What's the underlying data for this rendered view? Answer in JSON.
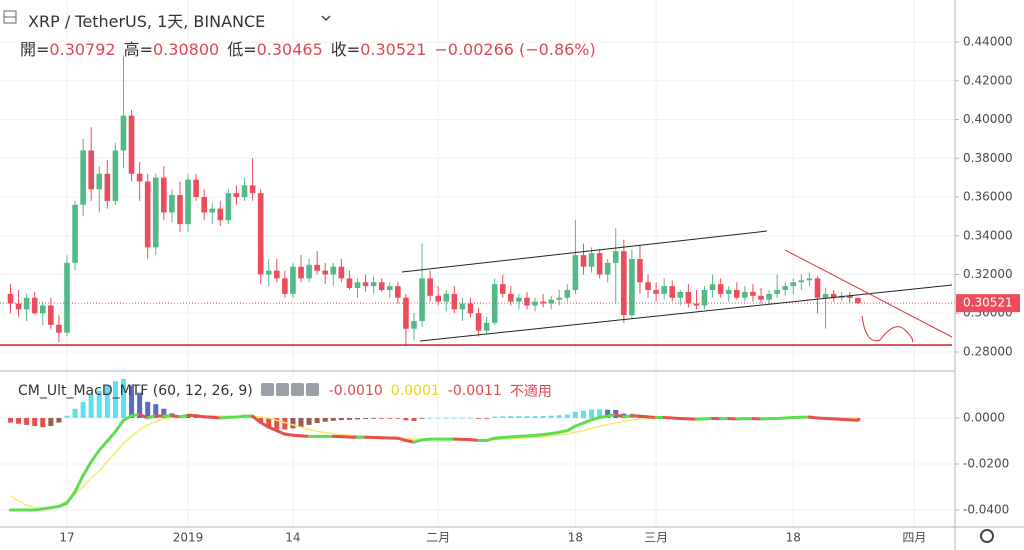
{
  "chart_data": [
    {
      "type": "candlestick",
      "title": "XRP / TetherUS, 1天, BINANCE",
      "legend_items": [
        {
          "label": "開=",
          "value": "0.30792"
        },
        {
          "label": "高=",
          "value": "0.30800"
        },
        {
          "label": "低=",
          "value": "0.30465"
        },
        {
          "label": "收=",
          "value": "0.30521"
        }
      ],
      "change": "−0.00266 (−0.86%)",
      "categories": [
        null,
        null,
        null,
        null,
        null,
        null,
        null,
        "17",
        null,
        null,
        null,
        null,
        null,
        null,
        null,
        null,
        null,
        null,
        null,
        null,
        null,
        null,
        "2019",
        null,
        null,
        null,
        null,
        null,
        null,
        null,
        null,
        null,
        null,
        null,
        null,
        "14",
        null,
        null,
        null,
        null,
        null,
        null,
        null,
        null,
        null,
        null,
        null,
        null,
        null,
        null,
        null,
        null,
        null,
        "二月",
        null,
        null,
        null,
        null,
        null,
        null,
        null,
        null,
        null,
        null,
        null,
        null,
        null,
        null,
        null,
        null,
        "18",
        null,
        null,
        null,
        null,
        null,
        null,
        null,
        null,
        null,
        "三月",
        null,
        null,
        null,
        null,
        null,
        null,
        null,
        null,
        null,
        null,
        null,
        null,
        null,
        null,
        null,
        null,
        "18",
        null,
        null,
        null,
        null,
        null,
        null,
        null,
        null,
        null,
        null,
        null,
        null,
        null,
        null,
        "四月",
        null,
        null,
        null,
        null
      ],
      "ohlc": [
        [
          0.31,
          0.315,
          0.3,
          0.305
        ],
        [
          0.305,
          0.312,
          0.298,
          0.302
        ],
        [
          0.302,
          0.31,
          0.296,
          0.308
        ],
        [
          0.308,
          0.311,
          0.299,
          0.3
        ],
        [
          0.3,
          0.306,
          0.294,
          0.304
        ],
        [
          0.304,
          0.308,
          0.292,
          0.294
        ],
        [
          0.294,
          0.299,
          0.285,
          0.29
        ],
        [
          0.29,
          0.33,
          0.288,
          0.326
        ],
        [
          0.326,
          0.358,
          0.322,
          0.356
        ],
        [
          0.356,
          0.39,
          0.35,
          0.384
        ],
        [
          0.384,
          0.396,
          0.358,
          0.364
        ],
        [
          0.364,
          0.376,
          0.352,
          0.372
        ],
        [
          0.372,
          0.379,
          0.354,
          0.358
        ],
        [
          0.358,
          0.388,
          0.356,
          0.384
        ],
        [
          0.384,
          0.433,
          0.375,
          0.402
        ],
        [
          0.402,
          0.405,
          0.368,
          0.372
        ],
        [
          0.372,
          0.378,
          0.358,
          0.368
        ],
        [
          0.368,
          0.372,
          0.328,
          0.334
        ],
        [
          0.334,
          0.372,
          0.33,
          0.37
        ],
        [
          0.37,
          0.376,
          0.348,
          0.352
        ],
        [
          0.352,
          0.364,
          0.347,
          0.361
        ],
        [
          0.361,
          0.368,
          0.342,
          0.346
        ],
        [
          0.346,
          0.372,
          0.342,
          0.369
        ],
        [
          0.369,
          0.372,
          0.358,
          0.36
        ],
        [
          0.36,
          0.364,
          0.348,
          0.352
        ],
        [
          0.352,
          0.357,
          0.346,
          0.354
        ],
        [
          0.354,
          0.358,
          0.345,
          0.348
        ],
        [
          0.348,
          0.364,
          0.346,
          0.362
        ],
        [
          0.362,
          0.366,
          0.356,
          0.36
        ],
        [
          0.36,
          0.37,
          0.358,
          0.366
        ],
        [
          0.366,
          0.38,
          0.358,
          0.362
        ],
        [
          0.362,
          0.364,
          0.315,
          0.32
        ],
        [
          0.32,
          0.328,
          0.314,
          0.322
        ],
        [
          0.322,
          0.328,
          0.316,
          0.318
        ],
        [
          0.318,
          0.322,
          0.308,
          0.31
        ],
        [
          0.31,
          0.326,
          0.308,
          0.324
        ],
        [
          0.324,
          0.33,
          0.316,
          0.318
        ],
        [
          0.318,
          0.328,
          0.316,
          0.325
        ],
        [
          0.325,
          0.332,
          0.32,
          0.322
        ],
        [
          0.322,
          0.326,
          0.315,
          0.32
        ],
        [
          0.32,
          0.326,
          0.314,
          0.324
        ],
        [
          0.324,
          0.328,
          0.316,
          0.318
        ],
        [
          0.318,
          0.322,
          0.312,
          0.313
        ],
        [
          0.313,
          0.318,
          0.308,
          0.316
        ],
        [
          0.316,
          0.32,
          0.311,
          0.314
        ],
        [
          0.314,
          0.319,
          0.31,
          0.316
        ],
        [
          0.316,
          0.318,
          0.311,
          0.312
        ],
        [
          0.312,
          0.316,
          0.308,
          0.314
        ],
        [
          0.314,
          0.316,
          0.305,
          0.308
        ],
        [
          0.308,
          0.31,
          0.283,
          0.292
        ],
        [
          0.292,
          0.3,
          0.286,
          0.296
        ],
        [
          0.296,
          0.336,
          0.293,
          0.318
        ],
        [
          0.318,
          0.322,
          0.306,
          0.309
        ],
        [
          0.309,
          0.314,
          0.304,
          0.306
        ],
        [
          0.306,
          0.312,
          0.301,
          0.31
        ],
        [
          0.31,
          0.314,
          0.3,
          0.302
        ],
        [
          0.302,
          0.308,
          0.296,
          0.305
        ],
        [
          0.305,
          0.308,
          0.298,
          0.3
        ],
        [
          0.3,
          0.303,
          0.288,
          0.291
        ],
        [
          0.291,
          0.298,
          0.289,
          0.295
        ],
        [
          0.295,
          0.318,
          0.294,
          0.315
        ],
        [
          0.315,
          0.32,
          0.308,
          0.31
        ],
        [
          0.31,
          0.314,
          0.304,
          0.306
        ],
        [
          0.306,
          0.31,
          0.302,
          0.308
        ],
        [
          0.308,
          0.311,
          0.302,
          0.304
        ],
        [
          0.304,
          0.308,
          0.301,
          0.306
        ],
        [
          0.306,
          0.31,
          0.303,
          0.305
        ],
        [
          0.305,
          0.309,
          0.302,
          0.307
        ],
        [
          0.307,
          0.312,
          0.304,
          0.308
        ],
        [
          0.308,
          0.315,
          0.306,
          0.312
        ],
        [
          0.312,
          0.348,
          0.31,
          0.33
        ],
        [
          0.33,
          0.336,
          0.32,
          0.324
        ],
        [
          0.324,
          0.334,
          0.321,
          0.331
        ],
        [
          0.331,
          0.333,
          0.318,
          0.32
        ],
        [
          0.32,
          0.328,
          0.316,
          0.326
        ],
        [
          0.326,
          0.344,
          0.305,
          0.332
        ],
        [
          0.332,
          0.338,
          0.295,
          0.299
        ],
        [
          0.299,
          0.333,
          0.297,
          0.328
        ],
        [
          0.328,
          0.335,
          0.31,
          0.316
        ],
        [
          0.316,
          0.32,
          0.308,
          0.312
        ],
        [
          0.312,
          0.316,
          0.306,
          0.31
        ],
        [
          0.31,
          0.318,
          0.307,
          0.314
        ],
        [
          0.314,
          0.317,
          0.306,
          0.308
        ],
        [
          0.308,
          0.312,
          0.304,
          0.311
        ],
        [
          0.311,
          0.315,
          0.303,
          0.305
        ],
        [
          0.305,
          0.312,
          0.302,
          0.304
        ],
        [
          0.304,
          0.314,
          0.302,
          0.312
        ],
        [
          0.312,
          0.32,
          0.308,
          0.315
        ],
        [
          0.315,
          0.318,
          0.308,
          0.31
        ],
        [
          0.31,
          0.314,
          0.306,
          0.312
        ],
        [
          0.312,
          0.316,
          0.307,
          0.308
        ],
        [
          0.308,
          0.314,
          0.306,
          0.311
        ],
        [
          0.311,
          0.315,
          0.306,
          0.309
        ],
        [
          0.309,
          0.313,
          0.305,
          0.307
        ],
        [
          0.307,
          0.312,
          0.305,
          0.31
        ],
        [
          0.31,
          0.32,
          0.308,
          0.312
        ],
        [
          0.312,
          0.316,
          0.309,
          0.314
        ],
        [
          0.314,
          0.318,
          0.31,
          0.316
        ],
        [
          0.316,
          0.32,
          0.312,
          0.317
        ],
        [
          0.317,
          0.321,
          0.314,
          0.318
        ],
        [
          0.318,
          0.319,
          0.3,
          0.308
        ],
        [
          0.308,
          0.313,
          0.292,
          0.31
        ],
        [
          0.31,
          0.312,
          0.306,
          0.308
        ],
        [
          0.308,
          0.311,
          0.306,
          0.309
        ],
        [
          0.309,
          0.311,
          0.305,
          0.3079
        ],
        [
          0.3079,
          0.308,
          0.3047,
          0.3052
        ],
        null,
        null,
        null,
        null,
        null,
        null,
        null,
        null,
        null,
        null,
        null
      ],
      "up_color": "#53b987",
      "down_color": "#eb4d5c",
      "last_price": {
        "value": 0.30521,
        "label": "0.30521"
      },
      "ylim": [
        0.2707,
        0.4617
      ],
      "yticks": [
        {
          "value": 0.28,
          "label": "0.28000"
        },
        {
          "value": 0.3,
          "label": "0.30000"
        },
        {
          "value": 0.32,
          "label": "0.32000"
        },
        {
          "value": 0.34,
          "label": "0.34000"
        },
        {
          "value": 0.36,
          "label": "0.36000"
        },
        {
          "value": 0.38,
          "label": "0.38000"
        },
        {
          "value": 0.4,
          "label": "0.40000"
        },
        {
          "value": 0.42,
          "label": "0.42000"
        },
        {
          "value": 0.44,
          "label": "0.44000"
        }
      ],
      "grid": true
    },
    {
      "type": "macd",
      "title": "CM_Ult_MacD_MTF (60, 12, 26, 9)",
      "readouts": [
        "-0.0010",
        "0.0001",
        "-0.0011"
      ],
      "note": "不適用",
      "histogram": [
        -0.002,
        -0.0025,
        -0.003,
        -0.0035,
        -0.004,
        -0.0035,
        -0.002,
        0.001,
        0.004,
        0.007,
        0.01,
        0.012,
        0.014,
        0.016,
        0.017,
        0.014,
        0.011,
        0.007,
        0.006,
        0.004,
        0.002,
        0.001,
        0.0008,
        0.0006,
        0.0004,
        0.0002,
        0.0001,
        0.0002,
        0.0003,
        0.0004,
        0.0003,
        -0.002,
        -0.004,
        -0.005,
        -0.005,
        -0.0045,
        -0.004,
        -0.003,
        -0.0022,
        -0.0016,
        -0.0012,
        -0.0009,
        -0.0008,
        -0.0006,
        -0.0004,
        -0.0003,
        -0.0003,
        -0.0003,
        -0.0003,
        -0.001,
        -0.0013,
        -0.0002,
        0.0001,
        0.0001,
        0.0001,
        0.0001,
        0.0001,
        0.0001,
        -0.0002,
        -0.0003,
        0.0006,
        0.0007,
        0.0008,
        0.0008,
        0.0008,
        0.0008,
        0.0009,
        0.001,
        0.0012,
        0.0015,
        0.0027,
        0.0032,
        0.0037,
        0.0038,
        0.0036,
        0.0035,
        0.0019,
        0.0019,
        0.0013,
        0.0007,
        0.0002,
        -0.0001,
        -0.0001,
        -0.0002,
        -0.0003,
        -0.0003,
        -0.0002,
        -0.0001,
        -0.0001,
        -0.0001,
        -0.0002,
        -0.0001,
        -0.0001,
        -0.0002,
        -0.0001,
        0,
        0.0001,
        0.0003,
        0.0004,
        0.0005,
        -0.0002,
        -0.0004,
        -0.0006,
        -0.0008,
        -0.0009,
        -0.0011,
        null,
        null,
        null,
        null,
        null,
        null,
        null,
        null,
        null,
        null,
        null
      ],
      "macd": [
        -0.04,
        -0.04,
        -0.04,
        -0.04,
        -0.0395,
        -0.039,
        -0.0385,
        -0.037,
        -0.032,
        -0.025,
        -0.019,
        -0.014,
        -0.01,
        -0.006,
        -0.001,
        0.001,
        0.0015,
        0,
        0.001,
        0.0008,
        0.001,
        0.0005,
        0.0012,
        0.001,
        0.0005,
        0.0003,
        0,
        0.0003,
        0.0004,
        0.0008,
        0.0008,
        -0.002,
        -0.004,
        -0.0055,
        -0.007,
        -0.0075,
        -0.0078,
        -0.008,
        -0.008,
        -0.008,
        -0.008,
        -0.0081,
        -0.0083,
        -0.0084,
        -0.0084,
        -0.0085,
        -0.0086,
        -0.0087,
        -0.0088,
        -0.0098,
        -0.0105,
        -0.0095,
        -0.0092,
        -0.0092,
        -0.0092,
        -0.0092,
        -0.0093,
        -0.0094,
        -0.0098,
        -0.0098,
        -0.0088,
        -0.0085,
        -0.0082,
        -0.008,
        -0.0078,
        -0.0076,
        -0.0072,
        -0.0068,
        -0.0062,
        -0.0055,
        -0.0035,
        -0.0022,
        -0.0008,
        0.0002,
        0.0008,
        0.0015,
        0.0005,
        0.001,
        0.0008,
        0.0005,
        0.0002,
        0.0002,
        0,
        -0.0002,
        -0.0004,
        -0.0005,
        -0.0004,
        -0.0002,
        -0.0003,
        -0.0003,
        -0.0004,
        -0.0003,
        -0.0003,
        -0.0004,
        -0.0003,
        -0.0002,
        0,
        0.0002,
        0.0003,
        0.0004,
        0,
        -0.0002,
        -0.0004,
        -0.0006,
        -0.0008,
        -0.001,
        null,
        null,
        null,
        null,
        null,
        null,
        null,
        null,
        null,
        null,
        null
      ],
      "signal": [
        -0.034,
        -0.036,
        -0.038,
        -0.039,
        -0.04,
        -0.0395,
        -0.038,
        -0.036,
        -0.033,
        -0.03,
        -0.026,
        -0.023,
        -0.019,
        -0.015,
        -0.011,
        -0.008,
        -0.005,
        -0.003,
        -0.0015,
        -0.0005,
        0.0003,
        0.0008,
        0.001,
        0.001,
        0.001,
        0.0009,
        0.0008,
        0.0007,
        0.0007,
        0.0007,
        0.0007,
        0.0005,
        0,
        -0.001,
        -0.002,
        -0.003,
        -0.004,
        -0.005,
        -0.0058,
        -0.0064,
        -0.0068,
        -0.0072,
        -0.0075,
        -0.0078,
        -0.008,
        -0.0082,
        -0.0083,
        -0.0084,
        -0.0085,
        -0.0088,
        -0.0092,
        -0.0093,
        -0.0093,
        -0.0093,
        -0.0093,
        -0.0093,
        -0.0093,
        -0.0094,
        -0.0095,
        -0.0096,
        -0.0094,
        -0.0092,
        -0.009,
        -0.0088,
        -0.0086,
        -0.0084,
        -0.0081,
        -0.0078,
        -0.0074,
        -0.007,
        -0.0062,
        -0.0054,
        -0.0045,
        -0.0036,
        -0.0028,
        -0.002,
        -0.0014,
        -0.0009,
        -0.0005,
        -0.0002,
        0,
        0.0001,
        0.0001,
        0,
        -0.0001,
        -0.0002,
        -0.0002,
        -0.0002,
        -0.0002,
        -0.0002,
        -0.0002,
        -0.0002,
        -0.0002,
        -0.0002,
        -0.0002,
        -0.0001,
        0,
        0.0001,
        0.0002,
        0.0002,
        0.0002,
        0.0002,
        0.0001,
        0.0001,
        0.0001,
        0.0001,
        null,
        null,
        null,
        null,
        null,
        null,
        null,
        null,
        null,
        null,
        null
      ],
      "rise_color": "#5fdc4f",
      "fall_color": "#e5504a",
      "signal_color": "#f2ec6e",
      "ylim": [
        -0.0474,
        0.02
      ],
      "yticks": [
        {
          "value": 0,
          "label": "0.0000"
        },
        {
          "value": -0.02,
          "label": "-0.0200"
        },
        {
          "value": -0.04,
          "label": "-0.0400"
        }
      ],
      "grid": true
    }
  ]
}
